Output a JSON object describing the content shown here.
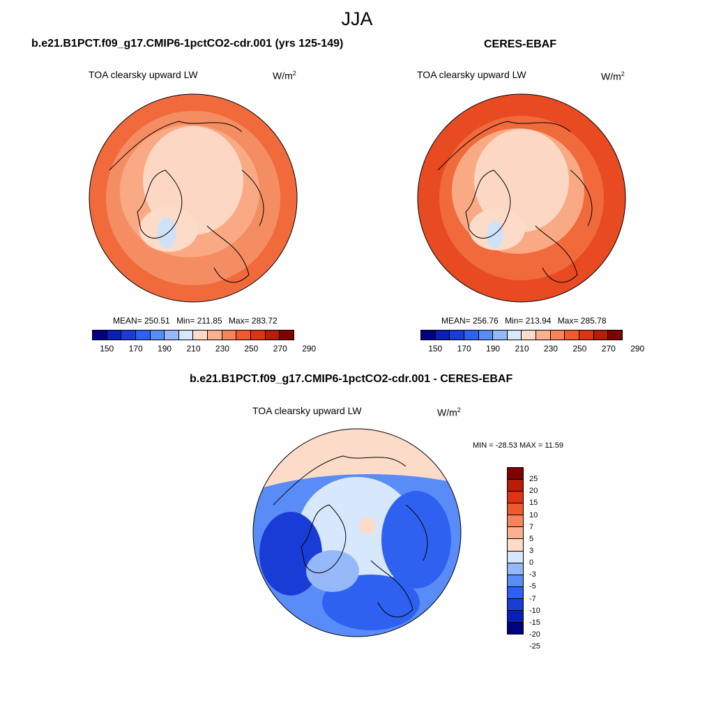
{
  "season": "JJA",
  "colors": {
    "model_scale": [
      "#000080",
      "#0a1fb4",
      "#1a3cd6",
      "#2f61f0",
      "#5a8cf7",
      "#94b8f8",
      "#d7e8fc",
      "#fcdcc8",
      "#fbb08f",
      "#f7855c",
      "#ef5a2e",
      "#dd3514",
      "#b81d0a",
      "#7f0000"
    ],
    "diff_scale": [
      "#000080",
      "#0a1fb4",
      "#1a3cd6",
      "#2f61f0",
      "#5a8cf7",
      "#94b8f8",
      "#d7e8fc",
      "#fcdcc8",
      "#fbb08f",
      "#f7855c",
      "#ef5a2e",
      "#dd3514",
      "#b81d0a",
      "#7f0000"
    ],
    "land_outline": "#000000"
  },
  "panels": [
    {
      "title": "b.e21.B1PCT.f09_g17.CMIP6-1pctCO2-cdr.001 (yrs 125-149)",
      "variable": "TOA clearsky upward LW",
      "units_base": "W/m",
      "units_exp": "2",
      "stats": {
        "mean": "MEAN= 250.51",
        "min": "Min= 211.85",
        "max": "Max= 283.72"
      }
    },
    {
      "title": "CERES-EBAF",
      "variable": "TOA clearsky upward LW",
      "units_base": "W/m",
      "units_exp": "2",
      "stats": {
        "mean": "MEAN= 256.76",
        "min": "Min= 213.94",
        "max": "Max= 285.78"
      }
    }
  ],
  "colorbar_ticks": [
    "150",
    "170",
    "190",
    "210",
    "230",
    "250",
    "270",
    "290"
  ],
  "diff_panel": {
    "title": "b.e21.B1PCT.f09_g17.CMIP6-1pctCO2-cdr.001 - CERES-EBAF",
    "variable": "TOA clearsky upward LW",
    "units_base": "W/m",
    "units_exp": "2",
    "stats": "MIN = -28.53 MAX =  11.59",
    "colorbar_ticks": [
      "25",
      "20",
      "15",
      "10",
      "7",
      "5",
      "3",
      "0",
      "-3",
      "-5",
      "-7",
      "-10",
      "-15",
      "-20",
      "-25"
    ]
  }
}
